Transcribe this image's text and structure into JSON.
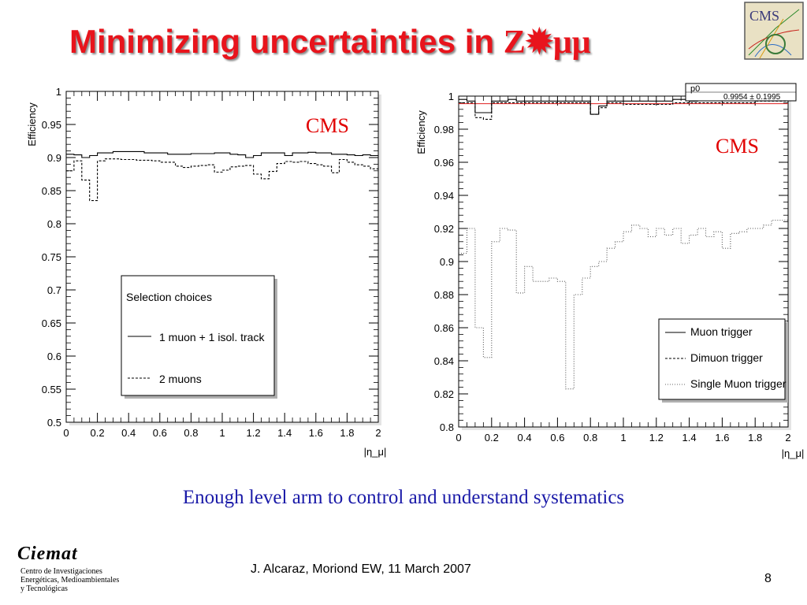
{
  "slide": {
    "title_prefix": "Minimizing uncertainties in ",
    "title_symbol": "Z✹μμ",
    "caption": "Enough level arm to control and understand systematics",
    "footer": "J. Alcaraz, Moriond EW, 11 March 2007",
    "page_number": "8",
    "ciemat_name": "Ciemat",
    "ciemat_lines": [
      "Centro de Investigaciones",
      "Energéticas, Medioambientales",
      "y Tecnológicas"
    ],
    "cms_logo_text": "CMS"
  },
  "chart_data": [
    {
      "type": "line",
      "tag": "CMS",
      "ylabel": "Efficiency",
      "xlabel": "|η_μ|",
      "xlim": [
        0,
        2
      ],
      "ylim": [
        0.5,
        1.0
      ],
      "xticks": [
        "0",
        "0.2",
        "0.4",
        "0.6",
        "0.8",
        "1",
        "1.2",
        "1.4",
        "1.6",
        "1.8",
        "2"
      ],
      "yticks": [
        "0.5",
        "0.55",
        "0.6",
        "0.65",
        "0.7",
        "0.75",
        "0.8",
        "0.85",
        "0.9",
        "0.95",
        "1"
      ],
      "legend": {
        "title": "Selection choices",
        "position": "center-left"
      },
      "series": [
        {
          "name": "1 muon + 1 isol. track",
          "style": "solid",
          "values": [
            0.905,
            0.904,
            0.9,
            0.903,
            0.907,
            0.907,
            0.909,
            0.909,
            0.909,
            0.909,
            0.907,
            0.907,
            0.907,
            0.905,
            0.905,
            0.905,
            0.906,
            0.906,
            0.906,
            0.907,
            0.907,
            0.905,
            0.904,
            0.9,
            0.903,
            0.907,
            0.907,
            0.907,
            0.903,
            0.907,
            0.907,
            0.908,
            0.907,
            0.907,
            0.905,
            0.905,
            0.904,
            0.903,
            0.904,
            0.903
          ]
        },
        {
          "name": "2 muons",
          "style": "dashed",
          "values": [
            0.88,
            0.895,
            0.866,
            0.835,
            0.895,
            0.898,
            0.898,
            0.897,
            0.897,
            0.896,
            0.896,
            0.895,
            0.893,
            0.893,
            0.887,
            0.885,
            0.887,
            0.888,
            0.889,
            0.878,
            0.881,
            0.886,
            0.887,
            0.888,
            0.875,
            0.868,
            0.879,
            0.891,
            0.894,
            0.893,
            0.894,
            0.891,
            0.889,
            0.887,
            0.877,
            0.897,
            0.893,
            0.889,
            0.887,
            0.883
          ]
        }
      ]
    },
    {
      "type": "line",
      "tag": "CMS",
      "ylabel": "Efficiency",
      "xlabel": "|η_μ|",
      "xlim": [
        0,
        2
      ],
      "ylim": [
        0.8,
        1.0
      ],
      "xticks": [
        "0",
        "0.2",
        "0.4",
        "0.6",
        "0.8",
        "1",
        "1.2",
        "1.4",
        "1.6",
        "1.8",
        "2"
      ],
      "yticks": [
        "0.8",
        "0.82",
        "0.84",
        "0.86",
        "0.88",
        "0.9",
        "0.92",
        "0.94",
        "0.96",
        "0.98",
        "1"
      ],
      "fit_box": {
        "label": "p0",
        "value": "0.9954 ± 0.1995"
      },
      "fit_line": 0.9954,
      "legend": {
        "position": "bottom-right"
      },
      "series": [
        {
          "name": "Muon trigger",
          "style": "solid",
          "values": [
            0.998,
            0.997,
            0.99,
            0.99,
            0.997,
            0.997,
            0.998,
            0.997,
            0.997,
            0.997,
            0.997,
            0.997,
            0.997,
            0.997,
            0.997,
            0.997,
            0.989,
            0.994,
            0.997,
            0.997,
            0.997,
            0.997,
            0.997,
            0.997,
            0.997,
            0.997,
            0.998,
            0.998,
            0.997,
            0.998,
            0.998,
            0.998,
            0.998,
            0.998,
            0.998,
            0.998,
            0.998,
            0.998,
            0.998,
            0.998
          ]
        },
        {
          "name": "Dimuon trigger",
          "style": "dashed",
          "values": [
            0.996,
            0.996,
            0.987,
            0.986,
            0.996,
            0.996,
            0.996,
            0.996,
            0.996,
            0.996,
            0.996,
            0.996,
            0.996,
            0.996,
            0.996,
            0.996,
            0.989,
            0.993,
            0.996,
            0.996,
            0.995,
            0.995,
            0.995,
            0.995,
            0.995,
            0.995,
            0.996,
            0.996,
            0.996,
            0.996,
            0.996,
            0.996,
            0.996,
            0.996,
            0.996,
            0.996,
            0.997,
            0.997,
            0.997,
            0.997
          ]
        },
        {
          "name": "Single Muon trigger",
          "style": "dotted",
          "values": [
            0.905,
            0.92,
            0.86,
            0.842,
            0.912,
            0.92,
            0.919,
            0.881,
            0.897,
            0.888,
            0.888,
            0.89,
            0.888,
            0.823,
            0.88,
            0.89,
            0.897,
            0.9,
            0.908,
            0.912,
            0.918,
            0.922,
            0.92,
            0.915,
            0.92,
            0.916,
            0.92,
            0.911,
            0.916,
            0.92,
            0.915,
            0.918,
            0.908,
            0.917,
            0.918,
            0.92,
            0.92,
            0.922,
            0.925,
            0.925
          ]
        }
      ]
    }
  ]
}
